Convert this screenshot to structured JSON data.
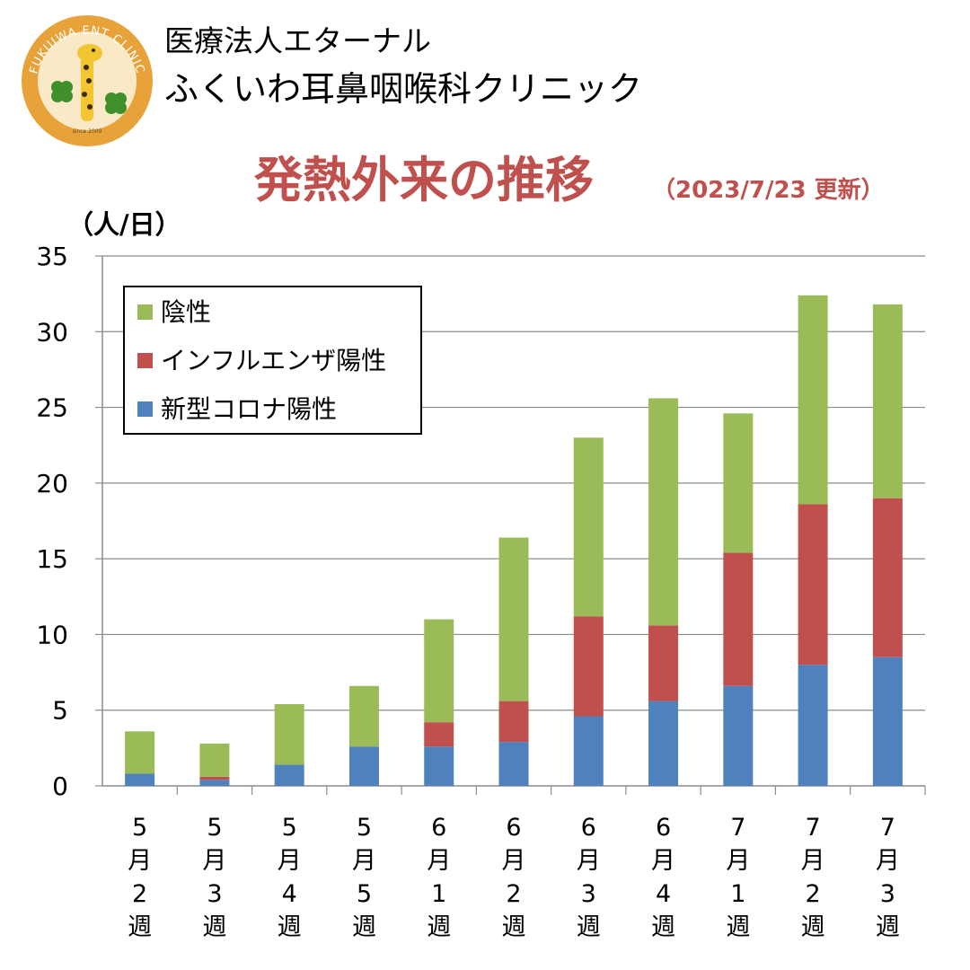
{
  "header": {
    "clinic_line1": "医療法人エターナル",
    "clinic_line2": "ふくいわ耳鼻咽喉科クリニック",
    "logo_text": "FUKUIWA ENT CLINIC",
    "logo_since": "since 2009"
  },
  "colors": {
    "title": "#c0504d",
    "negative": "#9bbb59",
    "influenza": "#c0504d",
    "covid": "#4f81bd",
    "gridline": "#8c8c8c",
    "logo_ring": "#e8a23a",
    "logo_bg": "#f9e9c7"
  },
  "chart_data": {
    "type": "bar",
    "stacked": true,
    "title": "発熱外来の推移",
    "subtitle": "（2023/7/23 更新）",
    "ylabel": "（人/日）",
    "xlabel": "",
    "ylim": [
      0,
      35
    ],
    "yticks": [
      0,
      5,
      10,
      15,
      20,
      25,
      30,
      35
    ],
    "grid": true,
    "legend_position": "top-left",
    "categories": [
      "5月2週",
      "5月3週",
      "5月4週",
      "5月5週",
      "6月1週",
      "6月2週",
      "6月3週",
      "6月4週",
      "7月1週",
      "7月2週",
      "7月3週"
    ],
    "series": [
      {
        "name": "新型コロナ陽性",
        "color": "#4f81bd",
        "values": [
          0.8,
          0.4,
          1.4,
          2.6,
          2.6,
          2.9,
          4.6,
          5.6,
          6.6,
          8.0,
          8.5
        ]
      },
      {
        "name": "インフルエンザ陽性",
        "color": "#c0504d",
        "values": [
          0,
          0.2,
          0,
          0,
          1.6,
          2.7,
          6.6,
          5.0,
          8.8,
          10.6,
          10.5
        ]
      },
      {
        "name": "陰性",
        "color": "#9bbb59",
        "values": [
          2.8,
          2.2,
          4.0,
          4.0,
          6.8,
          10.8,
          11.8,
          15.0,
          9.2,
          13.8,
          12.8
        ]
      }
    ],
    "legend_order": [
      "陰性",
      "インフルエンザ陽性",
      "新型コロナ陽性"
    ]
  }
}
